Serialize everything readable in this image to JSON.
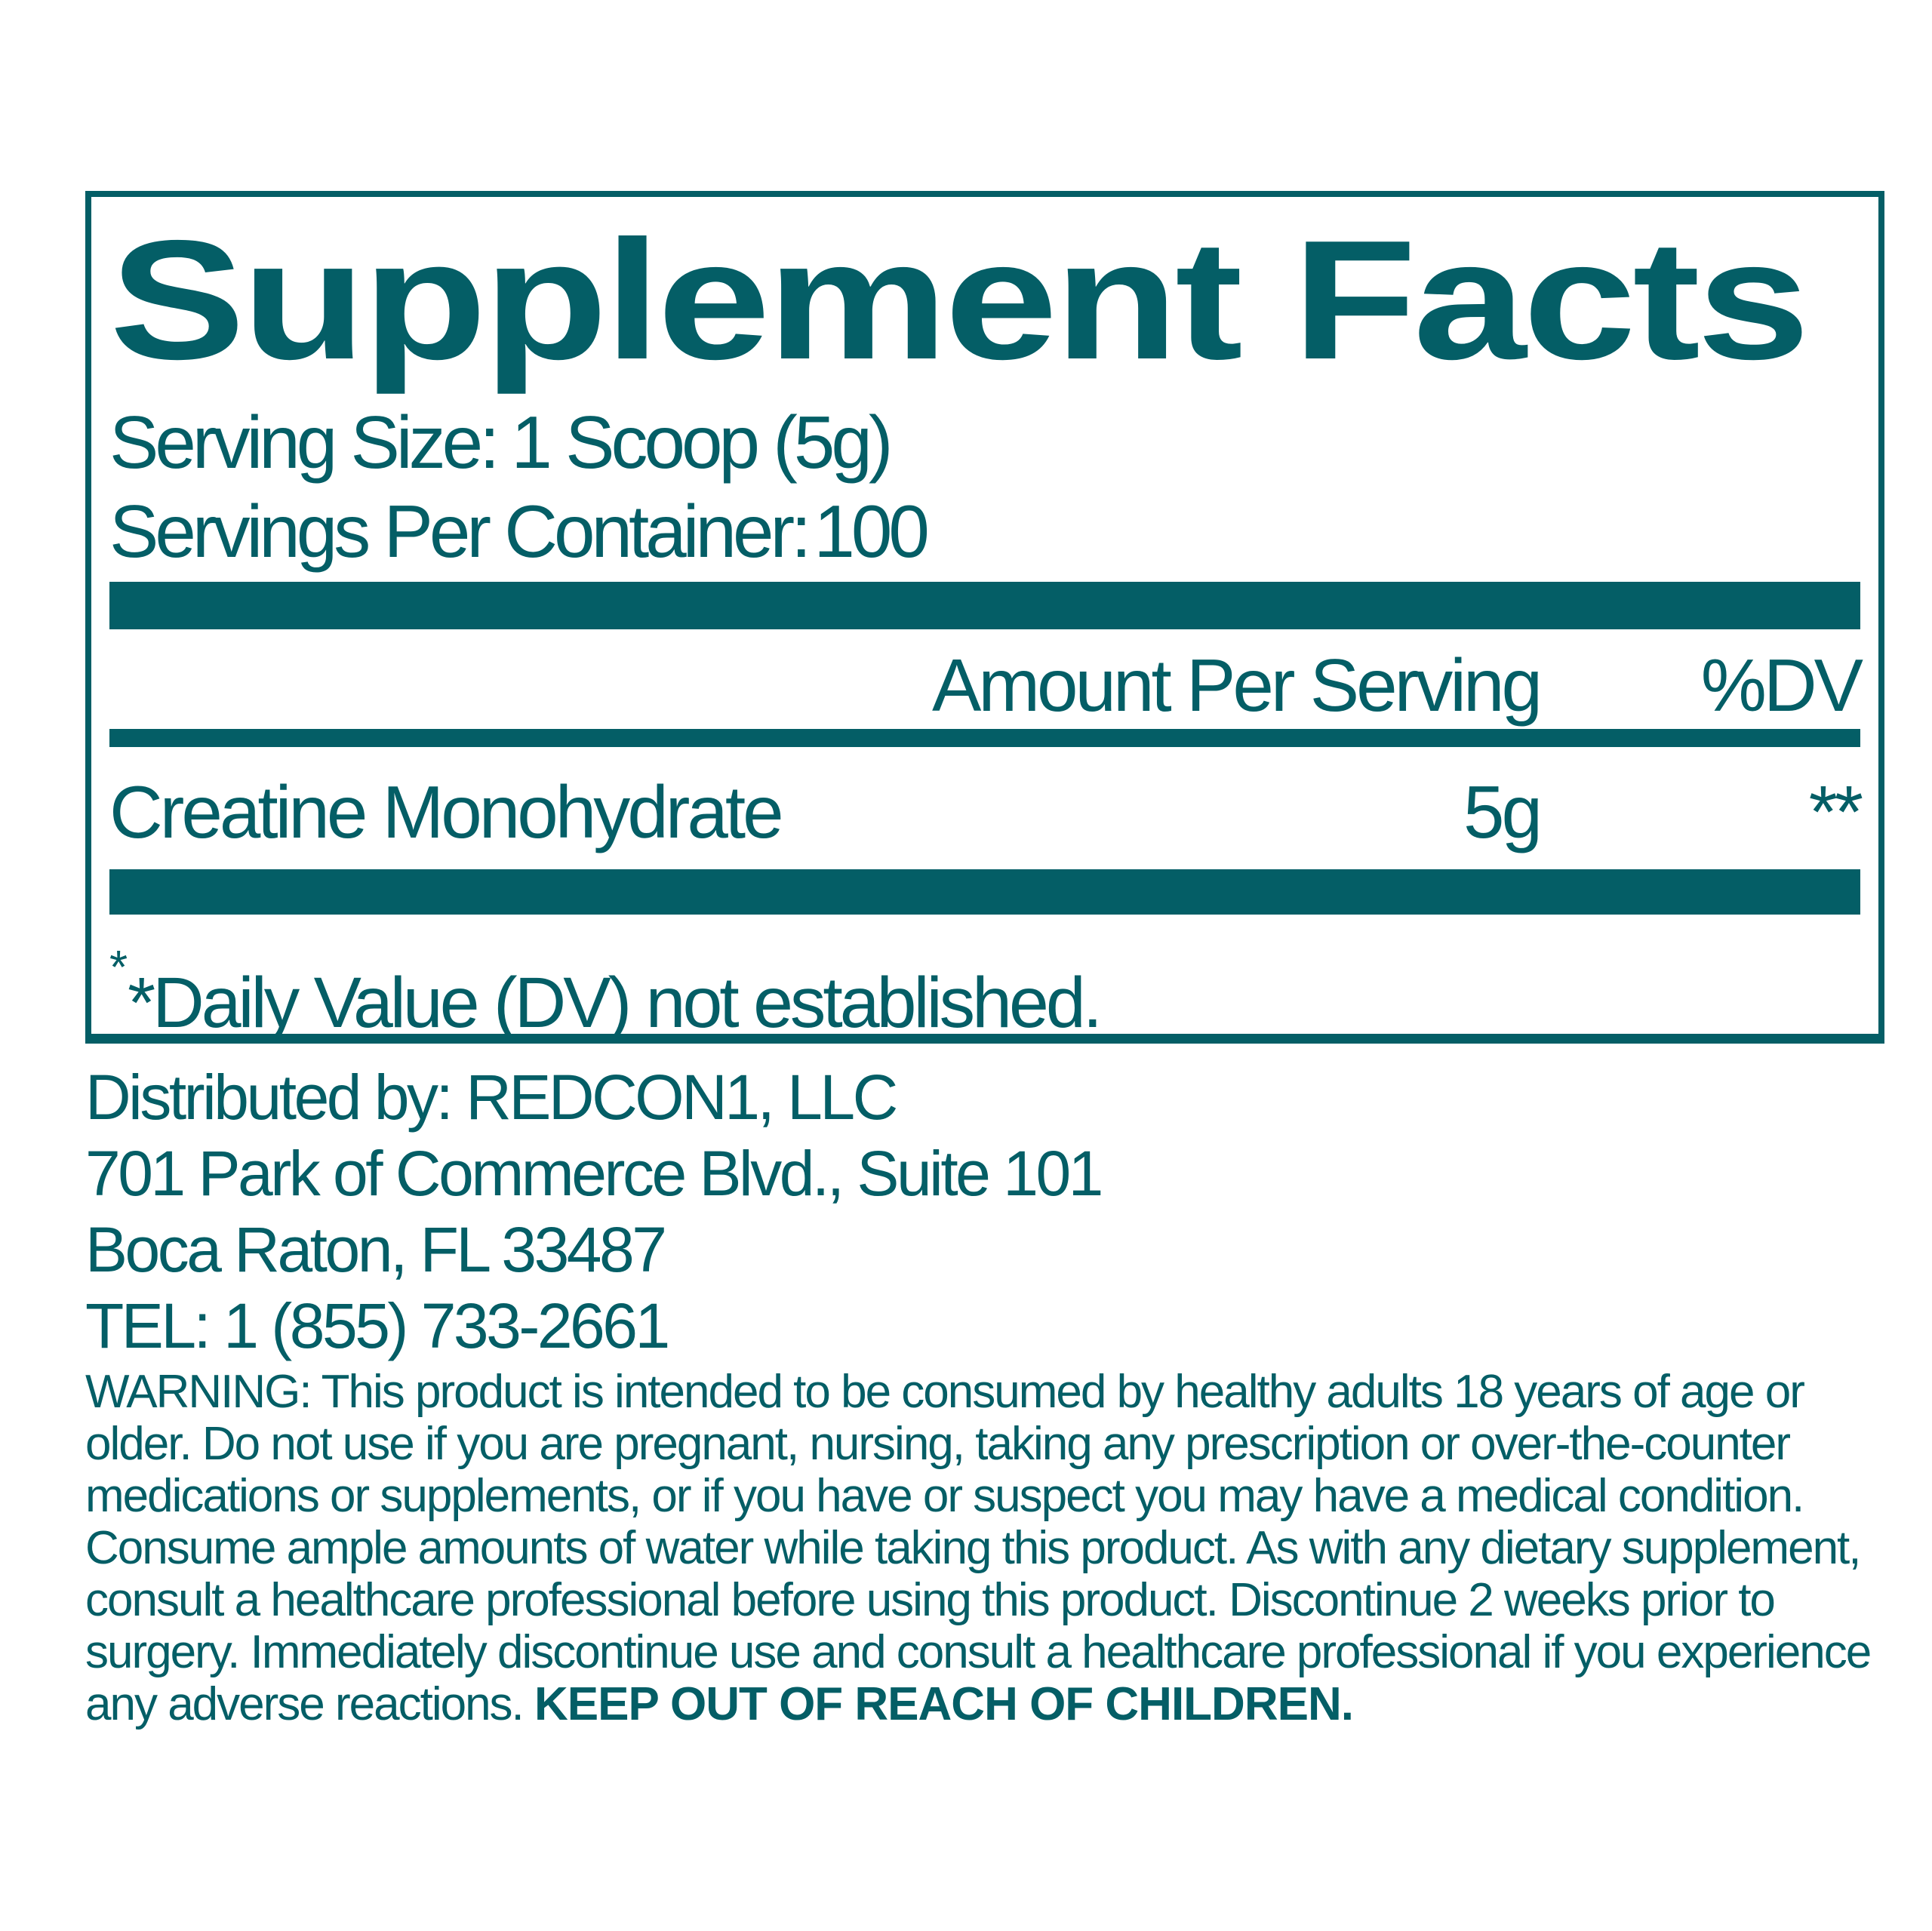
{
  "accent_color": "#045E66",
  "panel": {
    "title": "Supplement Facts",
    "serving_size_label": "Serving Size:",
    "serving_size_value": "1 Scoop (5g)",
    "servings_per_container_label": "Servings Per Container:",
    "servings_per_container_value": "100",
    "header": {
      "amount_label": "Amount Per Serving",
      "dv_label": "%DV"
    },
    "rows": [
      {
        "name": "Creatine Monohydrate",
        "amount": "5g",
        "dv": "**"
      }
    ],
    "footnote": {
      "sup": "*",
      "text": "*Daily Value (DV) not established."
    }
  },
  "distributor": {
    "line1": "Distributed by: REDCON1, LLC",
    "line2": "701 Park of Commerce Blvd., Suite 101",
    "line3": "Boca Raton, FL 33487",
    "line4": "TEL: 1 (855) 733-2661"
  },
  "warning": {
    "text": "WARNING: This product is intended to be consumed by healthy adults 18 years of age or older. Do not use if you are pregnant, nursing, taking any prescription or over-the-counter medications or supplements, or if you have or suspect you may have a medical condition. Consume ample amounts of water while taking this product. As with any dietary supplement, consult a healthcare professional before using this product. Discontinue 2 weeks prior to surgery. Immediately discontinue use and consult a healthcare professional if you experience any adverse reactions.",
    "emphasis": "KEEP OUT OF REACH OF CHILDREN."
  }
}
